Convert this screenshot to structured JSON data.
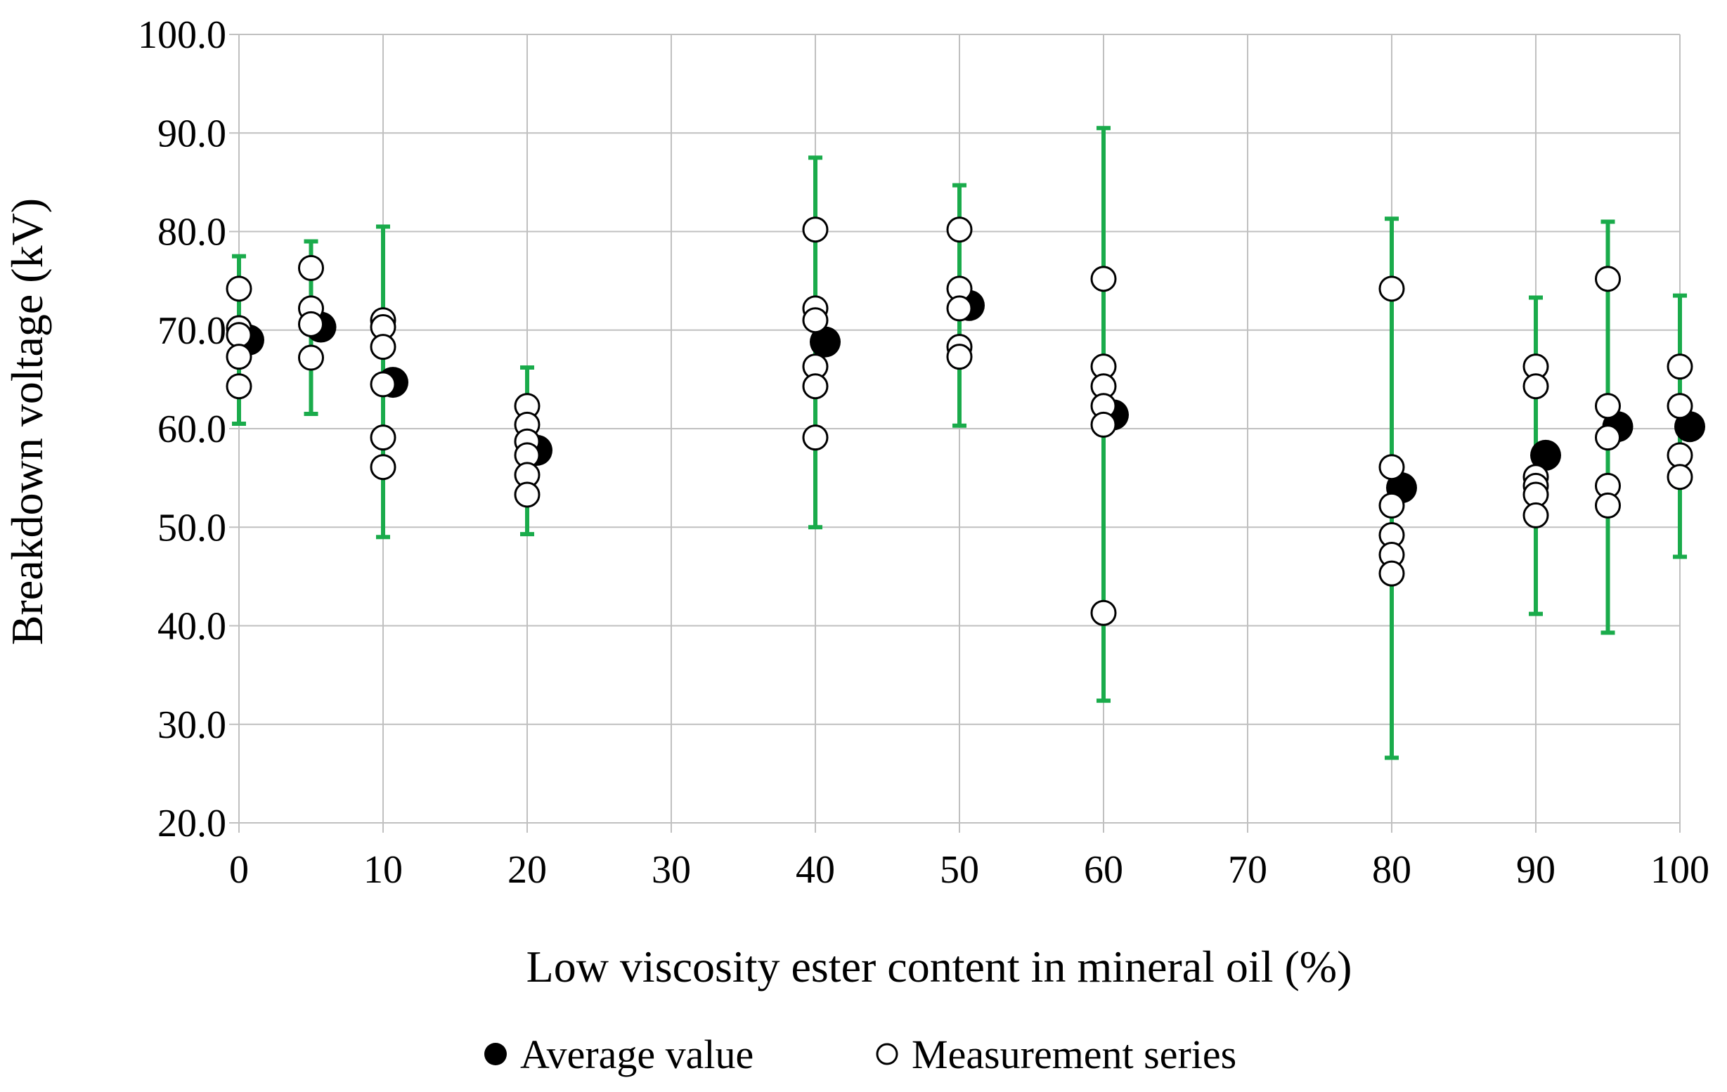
{
  "chart_data": {
    "type": "scatter",
    "title": "",
    "xlabel": "Low viscosity ester content in mineral oil (%)",
    "ylabel": "Breakdown voltage (kV)",
    "xlim": [
      0,
      100
    ],
    "ylim": [
      20,
      100
    ],
    "xticks": [
      "0",
      "10",
      "20",
      "30",
      "40",
      "50",
      "60",
      "70",
      "80",
      "90",
      "100"
    ],
    "yticks": [
      "20.0",
      "30.0",
      "40.0",
      "50.0",
      "60.0",
      "70.0",
      "80.0",
      "90.0",
      "100.0"
    ],
    "grid": true,
    "legend_position": "bottom",
    "colors": {
      "error_bar": "#1aab4b",
      "average": "#000000",
      "grid": "#c0c0c0"
    },
    "legend": [
      {
        "name": "Average value",
        "marker": "filled-circle"
      },
      {
        "name": "Measurement series",
        "marker": "open-circle"
      }
    ],
    "series": [
      {
        "name": "Average value",
        "marker": "filled-circle",
        "points": [
          {
            "x": 0,
            "y": 69.0,
            "err_low": 60.5,
            "err_high": 77.5
          },
          {
            "x": 5,
            "y": 70.3,
            "err_low": 61.5,
            "err_high": 79.0
          },
          {
            "x": 10,
            "y": 64.7,
            "err_low": 49.0,
            "err_high": 80.5
          },
          {
            "x": 20,
            "y": 57.8,
            "err_low": 49.3,
            "err_high": 66.2
          },
          {
            "x": 40,
            "y": 68.8,
            "err_low": 50.0,
            "err_high": 87.5
          },
          {
            "x": 50,
            "y": 72.5,
            "err_low": 60.3,
            "err_high": 84.7
          },
          {
            "x": 60,
            "y": 61.4,
            "err_low": 32.4,
            "err_high": 90.5
          },
          {
            "x": 80,
            "y": 54.0,
            "err_low": 26.6,
            "err_high": 81.3
          },
          {
            "x": 90,
            "y": 57.3,
            "err_low": 41.2,
            "err_high": 73.3
          },
          {
            "x": 95,
            "y": 60.2,
            "err_low": 39.3,
            "err_high": 81.0
          },
          {
            "x": 100,
            "y": 60.2,
            "err_low": 47.0,
            "err_high": 73.5
          }
        ]
      },
      {
        "name": "Measurement series",
        "marker": "open-circle",
        "points": [
          {
            "x": 0,
            "y": 74.2
          },
          {
            "x": 0,
            "y": 70.2
          },
          {
            "x": 0,
            "y": 69.5
          },
          {
            "x": 0,
            "y": 67.3
          },
          {
            "x": 0,
            "y": 64.3
          },
          {
            "x": 5,
            "y": 76.3
          },
          {
            "x": 5,
            "y": 72.2
          },
          {
            "x": 5,
            "y": 70.6
          },
          {
            "x": 5,
            "y": 67.2
          },
          {
            "x": 10,
            "y": 71.0
          },
          {
            "x": 10,
            "y": 70.3
          },
          {
            "x": 10,
            "y": 68.3
          },
          {
            "x": 10,
            "y": 64.5
          },
          {
            "x": 10,
            "y": 59.1
          },
          {
            "x": 10,
            "y": 56.1
          },
          {
            "x": 20,
            "y": 62.3
          },
          {
            "x": 20,
            "y": 60.4
          },
          {
            "x": 20,
            "y": 58.7
          },
          {
            "x": 20,
            "y": 57.3
          },
          {
            "x": 20,
            "y": 55.3
          },
          {
            "x": 20,
            "y": 53.3
          },
          {
            "x": 40,
            "y": 80.2
          },
          {
            "x": 40,
            "y": 72.2
          },
          {
            "x": 40,
            "y": 71.0
          },
          {
            "x": 40,
            "y": 66.3
          },
          {
            "x": 40,
            "y": 64.3
          },
          {
            "x": 40,
            "y": 59.1
          },
          {
            "x": 50,
            "y": 80.2
          },
          {
            "x": 50,
            "y": 74.2
          },
          {
            "x": 50,
            "y": 72.2
          },
          {
            "x": 50,
            "y": 68.3
          },
          {
            "x": 50,
            "y": 67.3
          },
          {
            "x": 60,
            "y": 75.2
          },
          {
            "x": 60,
            "y": 66.3
          },
          {
            "x": 60,
            "y": 64.3
          },
          {
            "x": 60,
            "y": 62.3
          },
          {
            "x": 60,
            "y": 60.4
          },
          {
            "x": 60,
            "y": 41.3
          },
          {
            "x": 80,
            "y": 74.2
          },
          {
            "x": 80,
            "y": 56.1
          },
          {
            "x": 80,
            "y": 52.2
          },
          {
            "x": 80,
            "y": 49.2
          },
          {
            "x": 80,
            "y": 47.2
          },
          {
            "x": 80,
            "y": 45.3
          },
          {
            "x": 90,
            "y": 66.3
          },
          {
            "x": 90,
            "y": 64.3
          },
          {
            "x": 90,
            "y": 55.1
          },
          {
            "x": 90,
            "y": 54.2
          },
          {
            "x": 90,
            "y": 53.3
          },
          {
            "x": 90,
            "y": 51.2
          },
          {
            "x": 95,
            "y": 75.2
          },
          {
            "x": 95,
            "y": 62.3
          },
          {
            "x": 95,
            "y": 59.1
          },
          {
            "x": 95,
            "y": 54.2
          },
          {
            "x": 95,
            "y": 52.2
          },
          {
            "x": 100,
            "y": 66.3
          },
          {
            "x": 100,
            "y": 62.3
          },
          {
            "x": 100,
            "y": 57.3
          },
          {
            "x": 100,
            "y": 55.1
          }
        ]
      }
    ]
  }
}
